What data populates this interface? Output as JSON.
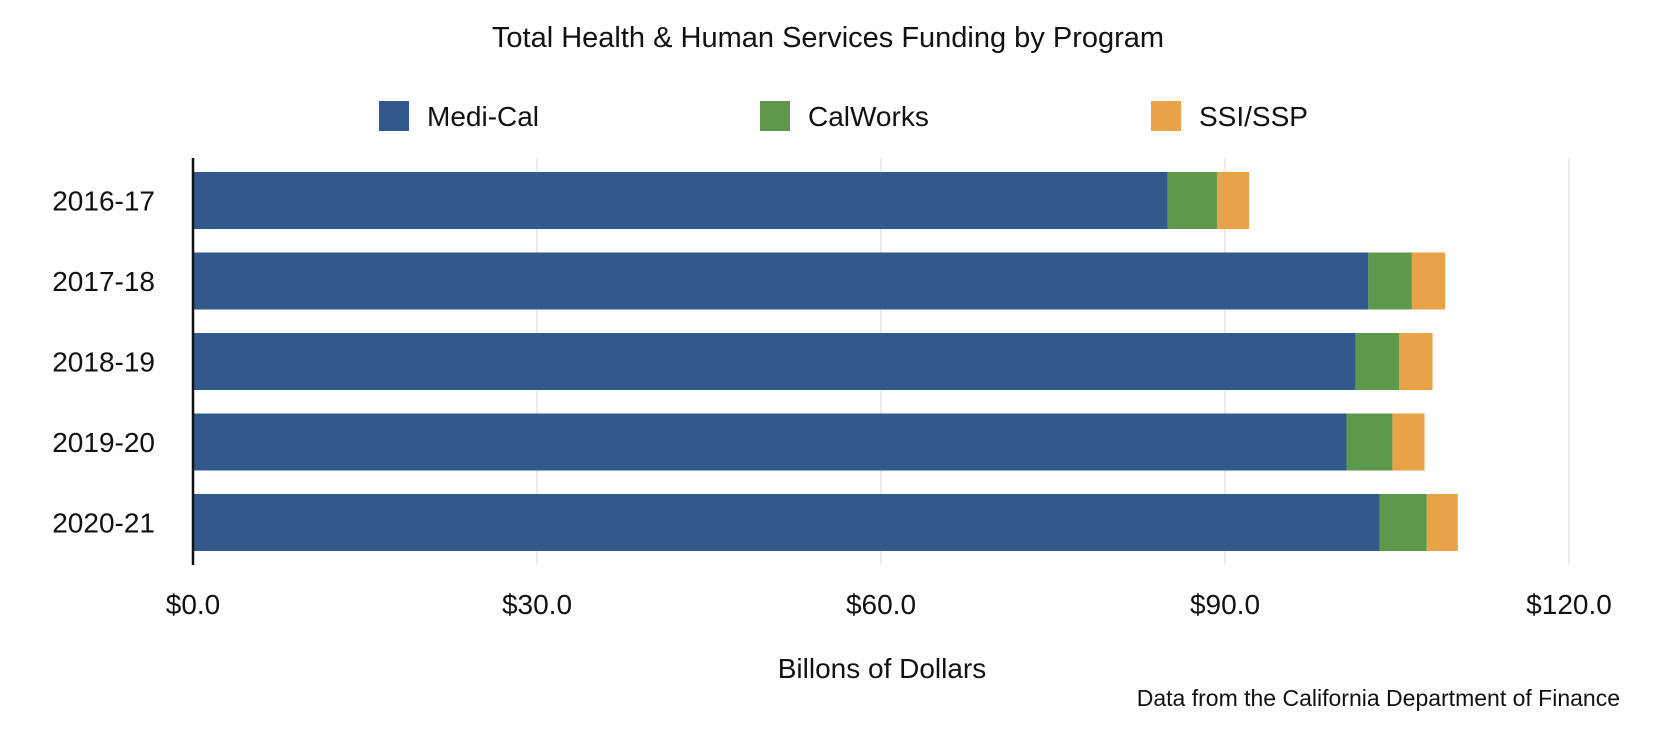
{
  "chart_data": {
    "type": "bar",
    "orientation": "horizontal",
    "stacked": true,
    "title": "Total Health & Human Services Funding by Program",
    "xlabel": "Billons of Dollars",
    "ylabel": "",
    "source": "Data from the California Department of Finance",
    "categories": [
      "2016-17",
      "2017-18",
      "2018-19",
      "2019-20",
      "2020-21"
    ],
    "series": [
      {
        "name": "Medi-Cal",
        "values": [
          85.0,
          102.5,
          101.4,
          100.6,
          103.5
        ],
        "color": "#31598b"
      },
      {
        "name": "CalWorks",
        "values": [
          4.3,
          3.8,
          3.8,
          4.0,
          4.1
        ],
        "color": "#5e994b"
      },
      {
        "name": "SSI/SSP",
        "values": [
          2.8,
          2.9,
          2.9,
          2.8,
          2.7
        ],
        "color": "#e8a248"
      }
    ],
    "xlim": [
      0,
      120
    ],
    "xticks": [
      0,
      30,
      60,
      90,
      120
    ],
    "xtick_labels": [
      "$0.0",
      "$30.0",
      "$60.0",
      "$90.0",
      "$120.0"
    ],
    "grid": "vertical",
    "legend_position": "top"
  }
}
